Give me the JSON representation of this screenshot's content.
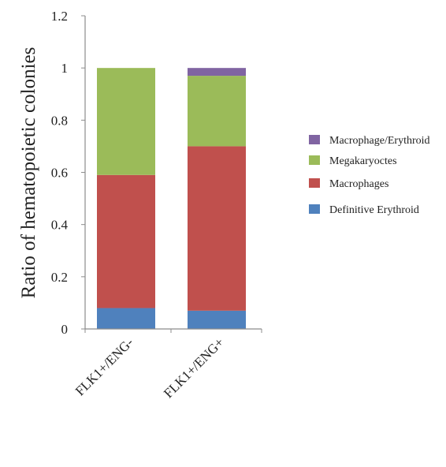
{
  "chart_data": {
    "type": "bar",
    "stacked": true,
    "title": "",
    "xlabel": "",
    "ylabel": "Ratio of hematopoietic colonies",
    "ylim": [
      0,
      1.2
    ],
    "yticks": [
      "0",
      "0.2",
      "0.4",
      "0.6",
      "0.8",
      "1",
      "1.2"
    ],
    "grid": false,
    "legend_position": "right",
    "categories": [
      "FLK1+/ENG-",
      "FLK1+/ENG+"
    ],
    "series": [
      {
        "name": "Definitive Erythroid",
        "color": "#4f81bd",
        "values": [
          0.08,
          0.07
        ]
      },
      {
        "name": "Macrophages",
        "color": "#c0504d",
        "values": [
          0.51,
          0.63
        ]
      },
      {
        "name": "Megakaryoctes",
        "color": "#9bbb59",
        "values": [
          0.41,
          0.27
        ]
      },
      {
        "name": "Macrophage/Erythroid",
        "color": "#8064a2",
        "values": [
          0.0,
          0.03
        ]
      }
    ],
    "legend_order": [
      "Macrophage/Erythroid",
      "Megakaryoctes",
      "Macrophages",
      "Definitive Erythroid"
    ]
  }
}
